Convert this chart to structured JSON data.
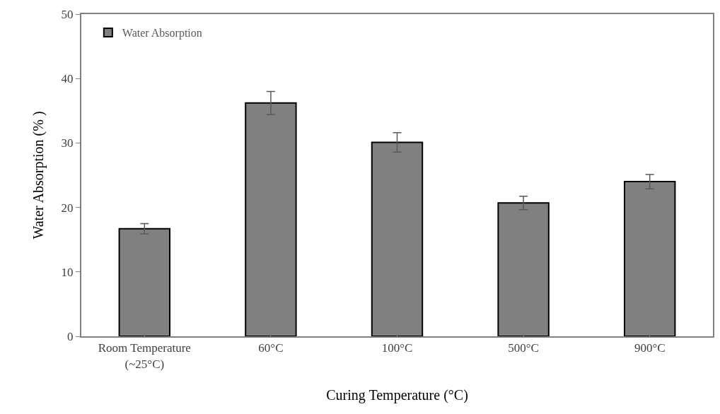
{
  "chart_data": {
    "type": "bar",
    "xlabel": "Curing Temperature (°C)",
    "ylabel": "Water Absorption (% )",
    "categories": [
      "Room Temperature\n(~25°C)",
      "60°C",
      "100°C",
      "500°C",
      "900°C"
    ],
    "series": [
      {
        "name": "Water Absorption",
        "color": "#808080",
        "values": [
          16.7,
          36.2,
          30.1,
          20.7,
          24.0
        ],
        "errors": [
          0.8,
          1.8,
          1.5,
          1.05,
          1.1
        ]
      }
    ],
    "ylim": [
      0,
      50
    ],
    "yticks": [
      0,
      10,
      20,
      30,
      40,
      50
    ],
    "grid": false,
    "legend": "top left"
  }
}
